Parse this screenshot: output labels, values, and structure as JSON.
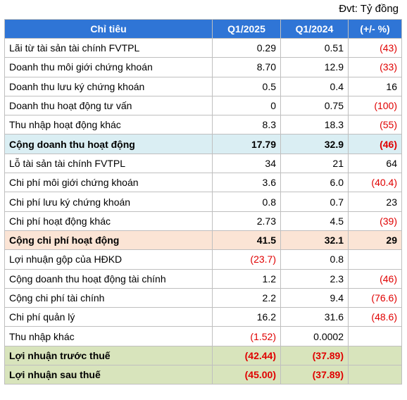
{
  "unit_note": "Đvt: Tỷ đồng",
  "table": {
    "header_fill": "#2f75d6",
    "header": [
      "Chỉ tiêu",
      "Q1/2025",
      "Q1/2024",
      "(+/- %)"
    ],
    "rows": [
      {
        "cells": [
          "Lãi từ tài sản tài chính FVTPL",
          "0.29",
          "0.51",
          "(43)"
        ]
      },
      {
        "cells": [
          "Doanh thu môi giới chứng khoán",
          "8.70",
          "12.9",
          "(33)"
        ]
      },
      {
        "cells": [
          "Doanh thu lưu ký chứng khoán",
          "0.5",
          "0.4",
          "16"
        ]
      },
      {
        "cells": [
          "Doanh thu hoạt động tư vấn",
          "0",
          "0.75",
          "(100)"
        ]
      },
      {
        "cells": [
          "Thu nhập hoạt động khác",
          "8.3",
          "18.3",
          "(55)"
        ]
      },
      {
        "cells": [
          "Cộng doanh thu hoạt động",
          "17.79",
          "32.9",
          "(46)"
        ],
        "fill": "#daeef3"
      },
      {
        "cells": [
          "Lỗ tài sản tài chính FVTPL",
          "34",
          "21",
          "64"
        ]
      },
      {
        "cells": [
          "Chi phí môi giới chứng khoán",
          "3.6",
          "6.0",
          "(40.4)"
        ]
      },
      {
        "cells": [
          "Chi phí lưu ký chứng khoán",
          "0.8",
          "0.7",
          "23"
        ]
      },
      {
        "cells": [
          "Chi phí hoạt động khác",
          "2.73",
          "4.5",
          "(39)"
        ]
      },
      {
        "cells": [
          "Cộng chi phí hoạt động",
          "41.5",
          "32.1",
          "29"
        ],
        "fill": "#fbe4d5"
      },
      {
        "cells": [
          "Lợi nhuận gộp của HĐKD",
          "(23.7)",
          "0.8",
          null
        ]
      },
      {
        "cells": [
          "Cộng doanh thu hoạt động tài chính",
          "1.2",
          "2.3",
          "(46)"
        ]
      },
      {
        "cells": [
          "Cộng chi phí tài chính",
          "2.2",
          "9.4",
          "(76.6)"
        ]
      },
      {
        "cells": [
          "Chi phí quản lý",
          "16.2",
          "31.6",
          "(48.6)"
        ]
      },
      {
        "cells": [
          "Thu nhập khác",
          "(1.52)",
          "0.0002",
          null
        ]
      },
      {
        "cells": [
          "Lợi nhuận trước thuế",
          "(42.44)",
          "(37.89)",
          null
        ],
        "fill": "#d8e4bc"
      },
      {
        "cells": [
          "Lợi nhuận sau thuế",
          "(45.00)",
          "(37.89)",
          null
        ],
        "fill": "#d8e4bc"
      }
    ]
  }
}
